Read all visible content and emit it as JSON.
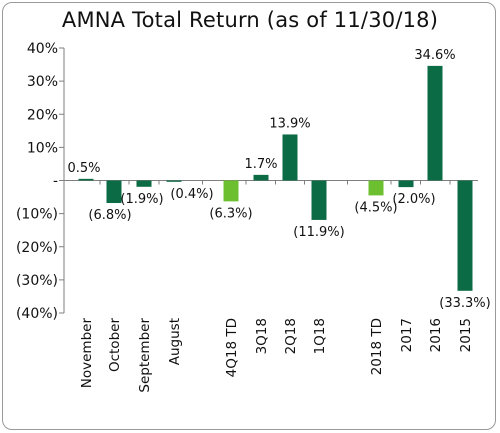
{
  "chart_data": {
    "type": "bar",
    "title": "AMNA Total Return (as of 11/30/18)",
    "xlabel": "",
    "ylabel": "",
    "ylim": [
      -40,
      40
    ],
    "yticks": [
      {
        "value": 40,
        "label": "40%"
      },
      {
        "value": 30,
        "label": "30%"
      },
      {
        "value": 20,
        "label": "20%"
      },
      {
        "value": 10,
        "label": "10%"
      },
      {
        "value": 0,
        "label": "-"
      },
      {
        "value": -10,
        "label": "(10%)"
      },
      {
        "value": -20,
        "label": "(20%)"
      },
      {
        "value": -30,
        "label": "(30%)"
      },
      {
        "value": -40,
        "label": "(40%)"
      }
    ],
    "grid": false,
    "legend": "none",
    "colors": {
      "dark_green": "#0b6b45",
      "light_green": "#6cc02f"
    },
    "categories": [
      "November",
      "October",
      "September",
      "August",
      "4Q18 TD",
      "3Q18",
      "2Q18",
      "1Q18",
      "2018 TD",
      "2017",
      "2016",
      "2015"
    ],
    "values": [
      0.5,
      -6.8,
      -1.9,
      -0.4,
      -6.3,
      1.7,
      13.9,
      -11.9,
      -4.5,
      -2.0,
      34.6,
      -33.3
    ],
    "data_labels": [
      "0.5%",
      "(6.8%)",
      "(1.9%)",
      "(0.4%)",
      "(6.3%)",
      "1.7%",
      "13.9%",
      "(11.9%)",
      "(4.5%)",
      "(2.0%)",
      "34.6%",
      "(33.3%)"
    ],
    "bar_colors": [
      "dark_green",
      "dark_green",
      "dark_green",
      "dark_green",
      "light_green",
      "dark_green",
      "dark_green",
      "dark_green",
      "light_green",
      "dark_green",
      "dark_green",
      "dark_green"
    ]
  }
}
